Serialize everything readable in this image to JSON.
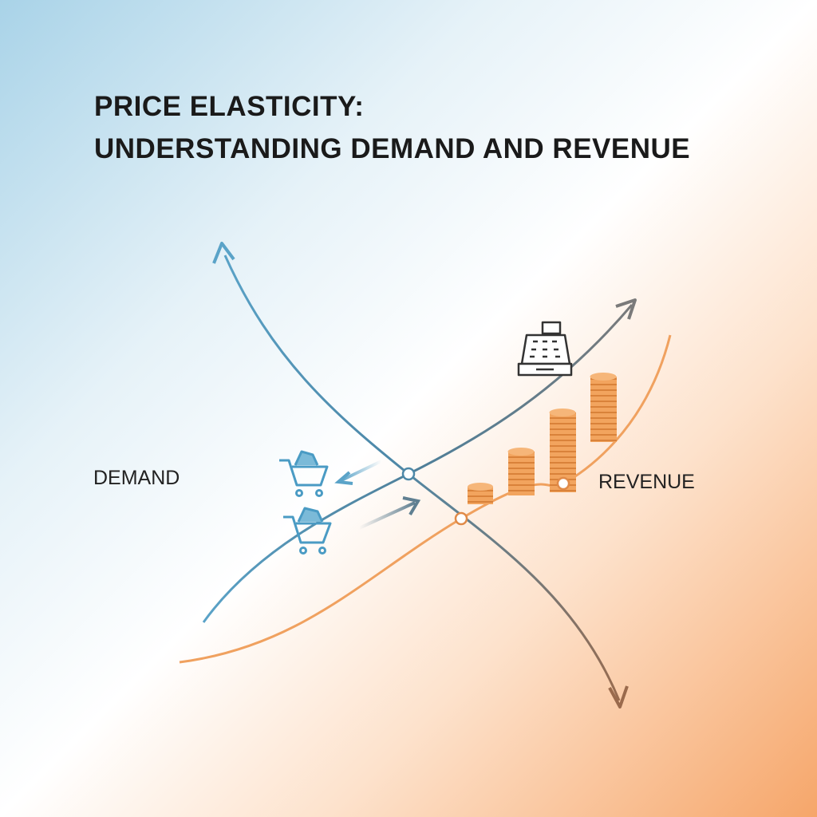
{
  "header": {
    "title_lines": [
      "PRICE ELASTICITY:",
      "UNDERSTANDING DEMAND AND REVENUE"
    ]
  },
  "labels": {
    "demand": "DEMAND",
    "revenue": "REVENUE"
  }
}
